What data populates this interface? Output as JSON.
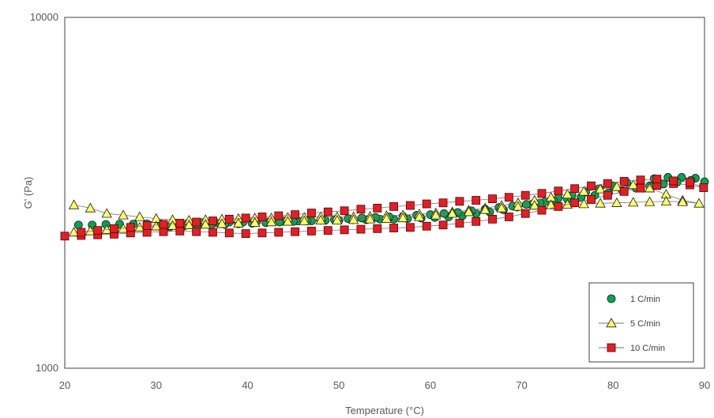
{
  "chart_data": {
    "type": "scatter",
    "xlabel": "Temperature (°C)",
    "ylabel": "G' (Pa)",
    "xlim": [
      20,
      90
    ],
    "ylim": [
      1000,
      10000
    ],
    "yscale": "log",
    "x_ticks": [
      "20",
      "30",
      "40",
      "50",
      "60",
      "70",
      "80",
      "90"
    ],
    "y_ticks": [
      "1000",
      "10000"
    ],
    "grid": false,
    "legend_position": "bottom-right",
    "series": [
      {
        "name": "1 C/min",
        "marker": "circle",
        "color": "#00a651",
        "line": false,
        "x": [
          21.5,
          23,
          24.5,
          26,
          27.5,
          29,
          30.5,
          32,
          33.5,
          35,
          36.5,
          38,
          39.5,
          41,
          42.5,
          44,
          45.5,
          47,
          48.5,
          50,
          51.5,
          53,
          54.5,
          56,
          57.5,
          59,
          60.5,
          62,
          63.5,
          65,
          66.5,
          68,
          69.5,
          71,
          72.5,
          74,
          75.5,
          77,
          78.5,
          80,
          81.5,
          83,
          84.5,
          86,
          87.5,
          89,
          90,
          88.5,
          87,
          85.5,
          84,
          82.5,
          81,
          79.5,
          78,
          76.5,
          75,
          73.5,
          72,
          70.5,
          69,
          67.5,
          66,
          64.5,
          63,
          61.5,
          60,
          58.5,
          57,
          55.5,
          54,
          52.5,
          51,
          49.5,
          48,
          46.5,
          45,
          43.5,
          42,
          40.5,
          39,
          37.5,
          36,
          34.5,
          33,
          31.5
        ],
        "y": [
          2560,
          2560,
          2570,
          2575,
          2575,
          2580,
          2580,
          2590,
          2590,
          2600,
          2600,
          2610,
          2610,
          2620,
          2620,
          2630,
          2630,
          2630,
          2640,
          2640,
          2650,
          2650,
          2660,
          2660,
          2670,
          2680,
          2690,
          2700,
          2720,
          2760,
          2790,
          2830,
          2880,
          2930,
          2980,
          3050,
          3110,
          3180,
          3250,
          3310,
          3380,
          3430,
          3470,
          3500,
          3500,
          3480,
          3400,
          3430,
          3390,
          3350,
          3310,
          3260,
          3210,
          3160,
          3110,
          3070,
          3030,
          3000,
          2960,
          2930,
          2900,
          2870,
          2840,
          2810,
          2780,
          2760,
          2740,
          2730,
          2710,
          2700,
          2690,
          2680,
          2670,
          2650,
          2640,
          2630,
          2620,
          2610,
          2600,
          2590,
          2580,
          2570,
          2560,
          2550,
          2540,
          2530
        ]
      },
      {
        "name": "5 C/min",
        "marker": "triangle",
        "color": "#ffff66",
        "line": true,
        "x": [
          21,
          22.8,
          24.6,
          26.4,
          28.2,
          30,
          31.8,
          33.6,
          35.4,
          37.2,
          39,
          40.8,
          42.6,
          44.4,
          46.2,
          48,
          49.8,
          51.6,
          53.4,
          55.2,
          57,
          58.8,
          60.6,
          62.4,
          64.2,
          66,
          67.8,
          69.6,
          71.4,
          73.2,
          75,
          76.8,
          78.6,
          80.4,
          82.2,
          84,
          85.8,
          87.6,
          89.4,
          87.6,
          85.8,
          84,
          82.2,
          80.4,
          78.6,
          76.8,
          75,
          73.2,
          71.4,
          69.6,
          67.8,
          66,
          64.2,
          62.4,
          60.6,
          58.8,
          57,
          55.2,
          53.4,
          51.6,
          49.8,
          48,
          46.2,
          44.4,
          42.6,
          40.8,
          39,
          37.2,
          35.4,
          33.6,
          31.8,
          30,
          28.2,
          26.4,
          24.6,
          22.8,
          21
        ],
        "y": [
          2920,
          2860,
          2760,
          2730,
          2700,
          2670,
          2650,
          2640,
          2650,
          2660,
          2670,
          2680,
          2680,
          2690,
          2690,
          2700,
          2700,
          2700,
          2710,
          2720,
          2730,
          2750,
          2770,
          2790,
          2820,
          2860,
          2910,
          2960,
          3010,
          3070,
          3130,
          3190,
          3240,
          3290,
          3330,
          3260,
          3130,
          3010,
          2950,
          2980,
          2990,
          2980,
          2970,
          2960,
          2950,
          2940,
          2930,
          2920,
          2910,
          2890,
          2860,
          2830,
          2790,
          2760,
          2730,
          2700,
          2680,
          2670,
          2660,
          2650,
          2640,
          2640,
          2630,
          2620,
          2610,
          2600,
          2590,
          2580,
          2570,
          2560,
          2550,
          2540,
          2520,
          2500,
          2480,
          2460,
          2440
        ]
      },
      {
        "name": "10 C/min",
        "marker": "square",
        "color": "#e31e24",
        "line": true,
        "x": [
          20,
          21.8,
          23.6,
          25.4,
          27.2,
          29,
          30.8,
          32.6,
          34.4,
          36.2,
          38,
          39.8,
          41.6,
          43.4,
          45.2,
          47,
          48.8,
          50.6,
          52.4,
          54.2,
          56,
          57.8,
          59.6,
          61.4,
          63.2,
          65,
          66.8,
          68.6,
          70.4,
          72.2,
          74,
          75.8,
          77.6,
          79.4,
          81.2,
          83,
          84.8,
          86.6,
          88.4,
          89.9,
          88.4,
          86.6,
          84.8,
          83,
          81.2,
          79.4,
          77.6,
          75.8,
          74,
          72.2,
          70.4,
          68.6,
          66.8,
          65,
          63.2,
          61.4,
          59.6,
          57.8,
          56,
          54.2,
          52.4,
          50.6,
          48.8,
          47,
          45.2,
          43.4,
          41.6,
          39.8,
          38,
          36.2,
          34.4,
          32.6,
          30.8,
          29,
          27.2,
          25.4,
          23.6,
          21.8
        ],
        "y": [
          2380,
          2390,
          2400,
          2410,
          2430,
          2440,
          2450,
          2460,
          2450,
          2440,
          2430,
          2420,
          2430,
          2440,
          2450,
          2460,
          2470,
          2480,
          2490,
          2500,
          2510,
          2520,
          2540,
          2560,
          2590,
          2620,
          2660,
          2700,
          2760,
          2820,
          2890,
          2960,
          3030,
          3110,
          3190,
          3260,
          3320,
          3360,
          3330,
          3270,
          3390,
          3420,
          3460,
          3440,
          3410,
          3360,
          3310,
          3250,
          3200,
          3150,
          3110,
          3070,
          3040,
          3010,
          2990,
          2960,
          2940,
          2910,
          2890,
          2860,
          2840,
          2810,
          2790,
          2770,
          2740,
          2720,
          2700,
          2680,
          2660,
          2630,
          2610,
          2590,
          2570,
          2550,
          2520,
          2500,
          2470,
          2440
        ]
      }
    ]
  }
}
